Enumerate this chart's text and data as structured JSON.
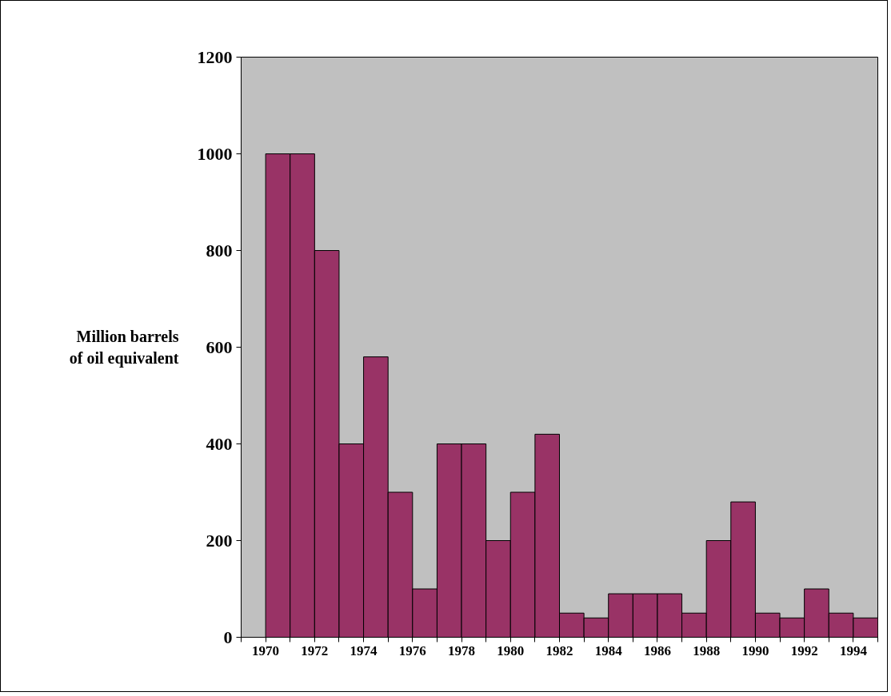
{
  "chart_data": {
    "type": "histogram",
    "ylabel": "Million barrels\nof oil equivalent",
    "bins": [
      1970,
      1971,
      1972,
      1973,
      1974,
      1975,
      1976,
      1977,
      1978,
      1979,
      1980,
      1981,
      1982,
      1983,
      1984,
      1985,
      1986,
      1987,
      1988,
      1989,
      1990,
      1991,
      1992,
      1993,
      1994,
      1995
    ],
    "values": [
      1000,
      1000,
      800,
      400,
      580,
      300,
      100,
      400,
      400,
      200,
      300,
      420,
      50,
      40,
      90,
      90,
      90,
      50,
      200,
      280,
      50,
      40,
      100,
      50,
      40
    ],
    "color": "#993366",
    "xlim": [
      1969,
      1995
    ],
    "xticks": [
      {
        "value": 1969,
        "label": null
      },
      1970,
      {
        "value": 1971,
        "label": null
      },
      1972,
      {
        "value": 1973,
        "label": null
      },
      1974,
      {
        "value": 1975,
        "label": null
      },
      1976,
      {
        "value": 1977,
        "label": null
      },
      1978,
      {
        "value": 1979,
        "label": null
      },
      1980,
      {
        "value": 1981,
        "label": null
      },
      1982,
      {
        "value": 1983,
        "label": null
      },
      1984,
      {
        "value": 1985,
        "label": null
      },
      1986,
      {
        "value": 1987,
        "label": null
      },
      1988,
      {
        "value": 1989,
        "label": null
      },
      1990,
      {
        "value": 1991,
        "label": null
      },
      1992,
      {
        "value": 1993,
        "label": null
      },
      1994,
      {
        "value": 1995,
        "label": null
      }
    ],
    "ylim": [
      0,
      1200
    ],
    "yticks": [
      0,
      200,
      400,
      600,
      800,
      1000,
      1200
    ],
    "grid": false
  }
}
